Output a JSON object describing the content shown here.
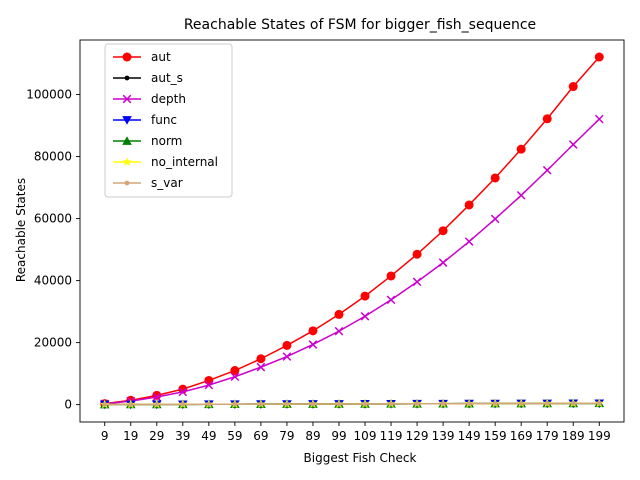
{
  "chart_data": {
    "type": "line",
    "title": "Reachable States of FSM for bigger_fish_sequence",
    "xlabel": "Biggest Fish Check",
    "ylabel": "Reachable States",
    "categories": [
      "9",
      "19",
      "29",
      "39",
      "49",
      "59",
      "69",
      "79",
      "89",
      "99",
      "109",
      "119",
      "129",
      "139",
      "149",
      "159",
      "169",
      "179",
      "189",
      "199"
    ],
    "ylim": [
      -5600,
      117600
    ],
    "yticks": [
      0,
      20000,
      40000,
      60000,
      80000,
      100000
    ],
    "ytick_labels": [
      "0",
      "20000",
      "40000",
      "60000",
      "80000",
      "100000"
    ],
    "grid": false,
    "legend_position": "top-left",
    "series": [
      {
        "name": "aut",
        "color": "#ff0000",
        "marker": "circle",
        "values": [
          320,
          1400,
          3000,
          5000,
          7800,
          11000,
          14800,
          19100,
          23800,
          29100,
          35000,
          41500,
          48500,
          56100,
          64400,
          73100,
          82400,
          92200,
          102600,
          112100
        ]
      },
      {
        "name": "aut_s",
        "color": "#000000",
        "marker": "point",
        "values": [
          40,
          60,
          80,
          100,
          120,
          140,
          160,
          180,
          200,
          220,
          240,
          260,
          280,
          300,
          320,
          340,
          360,
          380,
          400,
          420
        ]
      },
      {
        "name": "depth",
        "color": "#cc00cc",
        "marker": "x",
        "values": [
          240,
          1150,
          2450,
          4100,
          6300,
          9000,
          12100,
          15500,
          19400,
          23700,
          28500,
          33800,
          39600,
          45800,
          52600,
          59900,
          67500,
          75600,
          83900,
          92100
        ]
      },
      {
        "name": "func",
        "color": "#0000ff",
        "marker": "triangle-down",
        "values": [
          40,
          60,
          80,
          100,
          120,
          140,
          160,
          180,
          200,
          220,
          240,
          260,
          280,
          300,
          320,
          340,
          360,
          380,
          400,
          420
        ]
      },
      {
        "name": "norm",
        "color": "#008000",
        "marker": "triangle-up",
        "values": [
          40,
          60,
          80,
          100,
          120,
          140,
          160,
          180,
          200,
          220,
          240,
          260,
          280,
          300,
          320,
          340,
          360,
          380,
          400,
          420
        ]
      },
      {
        "name": "no_internal",
        "color": "#ffff00",
        "marker": "star",
        "values": [
          40,
          60,
          80,
          100,
          120,
          140,
          160,
          180,
          200,
          220,
          240,
          260,
          280,
          300,
          320,
          340,
          360,
          380,
          400,
          420
        ]
      },
      {
        "name": "s_var",
        "color": "#d2a679",
        "marker": "small-circle",
        "values": [
          40,
          60,
          80,
          100,
          120,
          140,
          160,
          180,
          200,
          220,
          240,
          260,
          280,
          300,
          320,
          340,
          360,
          380,
          400,
          420
        ]
      }
    ]
  }
}
